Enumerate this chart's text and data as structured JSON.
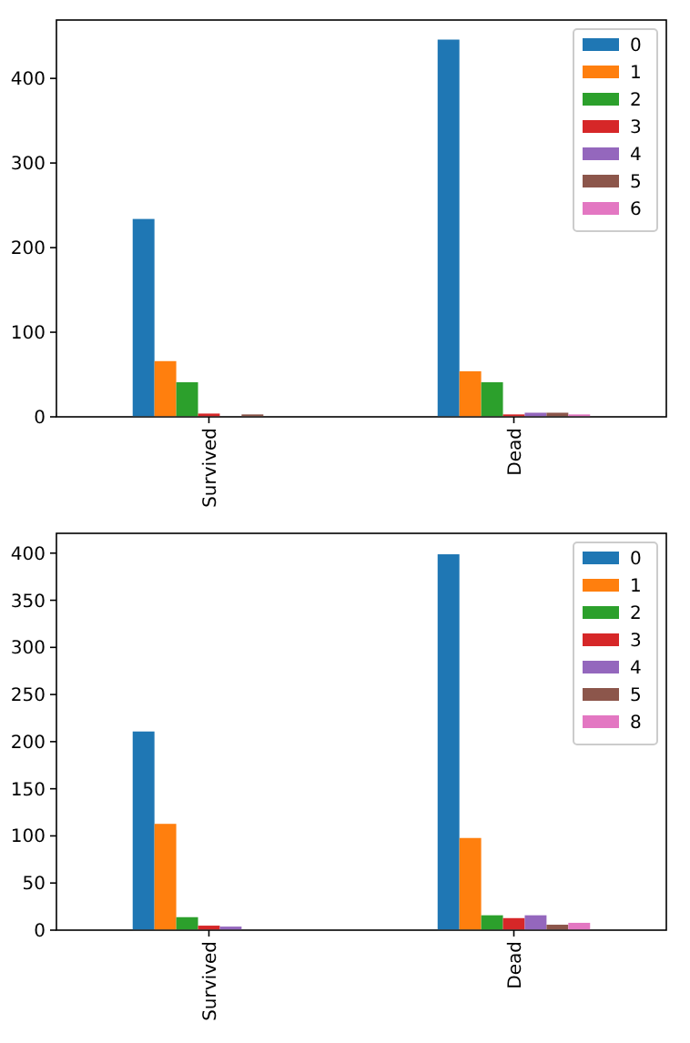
{
  "chart_data": [
    {
      "type": "bar",
      "categories": [
        "Survived",
        "Dead"
      ],
      "ylim": [
        0,
        469
      ],
      "yticks": [
        0,
        100,
        200,
        300,
        400
      ],
      "legend": "top right",
      "grid": false,
      "series": [
        {
          "name": "0",
          "color": "#1f77b4",
          "values": [
            233,
            445
          ]
        },
        {
          "name": "1",
          "color": "#ff7f0e",
          "values": [
            65,
            53
          ]
        },
        {
          "name": "2",
          "color": "#2ca02c",
          "values": [
            40,
            40
          ]
        },
        {
          "name": "3",
          "color": "#d62728",
          "values": [
            3,
            2
          ]
        },
        {
          "name": "4",
          "color": "#9467bd",
          "values": [
            null,
            4
          ]
        },
        {
          "name": "5",
          "color": "#8c564b",
          "values": [
            2,
            4
          ]
        },
        {
          "name": "6",
          "color": "#e377c2",
          "values": [
            null,
            2
          ]
        }
      ]
    },
    {
      "type": "bar",
      "categories": [
        "Survived",
        "Dead"
      ],
      "ylim": [
        0,
        421
      ],
      "yticks": [
        0,
        50,
        100,
        150,
        200,
        250,
        300,
        350,
        400
      ],
      "legend": "top right",
      "grid": false,
      "series": [
        {
          "name": "0",
          "color": "#1f77b4",
          "values": [
            210,
            398
          ]
        },
        {
          "name": "1",
          "color": "#ff7f0e",
          "values": [
            112,
            97
          ]
        },
        {
          "name": "2",
          "color": "#2ca02c",
          "values": [
            13,
            15
          ]
        },
        {
          "name": "3",
          "color": "#d62728",
          "values": [
            4,
            12
          ]
        },
        {
          "name": "4",
          "color": "#9467bd",
          "values": [
            3,
            15
          ]
        },
        {
          "name": "5",
          "color": "#8c564b",
          "values": [
            null,
            5
          ]
        },
        {
          "name": "8",
          "color": "#e377c2",
          "values": [
            null,
            7
          ]
        }
      ]
    }
  ]
}
